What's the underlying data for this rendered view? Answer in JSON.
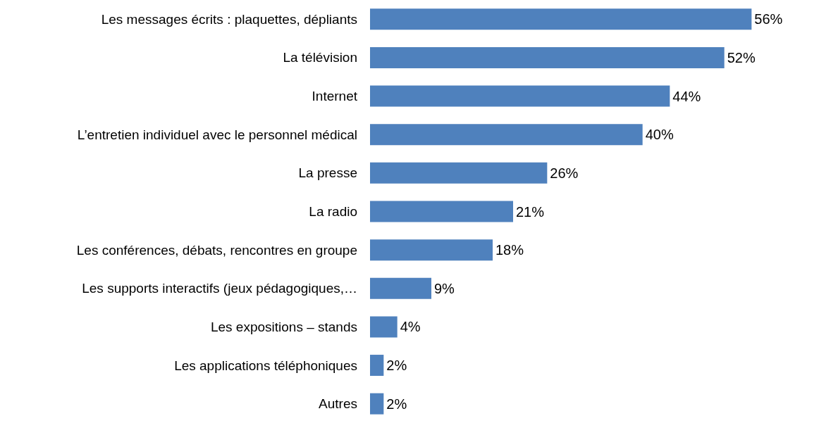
{
  "chart_data": {
    "type": "bar",
    "orientation": "horizontal",
    "color": "#4f81bd",
    "categories": [
      "Les messages écrits : plaquettes, dépliants",
      "La télévision",
      "Internet",
      "L’entretien individuel avec le personnel médical",
      "La presse",
      "La radio",
      "Les conférences, débats, rencontres en groupe",
      "Les supports interactifs (jeux pédagogiques,…",
      "Les expositions – stands",
      "Les applications téléphoniques",
      "Autres"
    ],
    "values": [
      56,
      52,
      44,
      40,
      26,
      21,
      18,
      9,
      4,
      2,
      2
    ],
    "value_labels": [
      "56%",
      "52%",
      "44%",
      "40%",
      "26%",
      "21%",
      "18%",
      "9%",
      "4%",
      "2%",
      "2%"
    ]
  }
}
